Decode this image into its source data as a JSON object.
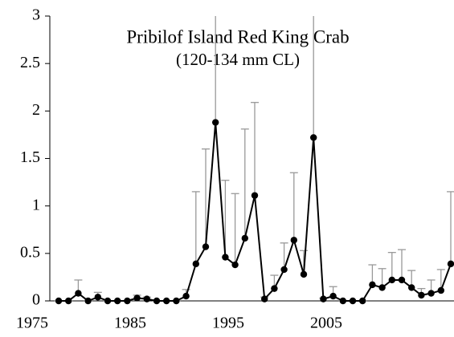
{
  "chart_data": {
    "type": "line",
    "title": "Pribilof Island Red King Crab",
    "subtitle": "(120-134 mm CL)",
    "categories": [
      "1975",
      null,
      null,
      null,
      null,
      null,
      null,
      null,
      null,
      null,
      "1985",
      null,
      null,
      null,
      null,
      null,
      null,
      null,
      null,
      null,
      "1995",
      null,
      null,
      null,
      null,
      null,
      null,
      null,
      null,
      null,
      "2005",
      null,
      null,
      null,
      null,
      null,
      null,
      null,
      null,
      null,
      null
    ],
    "series": [
      {
        "color": "#000000",
        "error_color": "#999999",
        "values": [
          0,
          0,
          0.08,
          0,
          0.04,
          0,
          0,
          0,
          0.03,
          0.02,
          0,
          0,
          0,
          0.05,
          0.39,
          0.57,
          1.88,
          0.46,
          0.38,
          0.66,
          1.11,
          0.02,
          0.13,
          0.33,
          0.64,
          0.28,
          1.72,
          0.02,
          0.05,
          0,
          0,
          0,
          0.17,
          0.14,
          0.22,
          0.22,
          0.14,
          0.06,
          0.08,
          0.11,
          0.39
        ],
        "errors": [
          0,
          0,
          0.14,
          0,
          0.05,
          0,
          0,
          0,
          0.03,
          0.02,
          0,
          0,
          0,
          0.07,
          0.76,
          1.03,
          1.4,
          0.81,
          0.75,
          1.15,
          0.98,
          0.02,
          0.14,
          0.28,
          0.71,
          0.25,
          1.6,
          0.01,
          0.1,
          0,
          0,
          0,
          0.21,
          0.2,
          0.29,
          0.32,
          0.18,
          0.07,
          0.14,
          0.22,
          0.76
        ]
      }
    ],
    "ylim": [
      0,
      3
    ],
    "yticks": [
      0,
      0.5,
      1,
      1.5,
      2,
      2.5,
      3
    ]
  }
}
